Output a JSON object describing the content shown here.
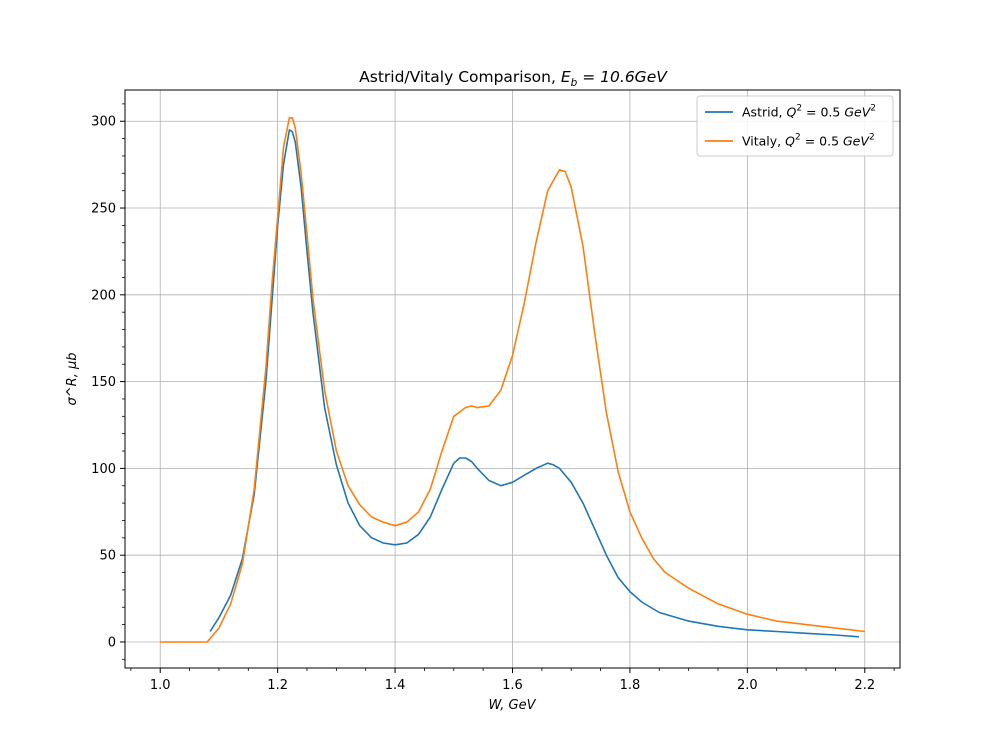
{
  "chart_data": {
    "type": "line",
    "title": "Astrid/Vitaly Comparison, E_b = 10.6GeV",
    "title_parts": {
      "prefix": "Astrid/Vitaly Comparison, ",
      "symbol": "E",
      "subscript": "b",
      "suffix": " = 10.6GeV"
    },
    "xlabel": "W, GeV",
    "ylabel": "σ^R, μb",
    "xlim": [
      0.94,
      2.26
    ],
    "ylim": [
      -15,
      318
    ],
    "x_ticks": [
      1.0,
      1.2,
      1.4,
      1.6,
      1.8,
      2.0,
      2.2
    ],
    "x_tick_labels": [
      "1.0",
      "1.2",
      "1.4",
      "1.6",
      "1.8",
      "2.0",
      "2.2"
    ],
    "y_ticks": [
      0,
      50,
      100,
      150,
      200,
      250,
      300
    ],
    "y_tick_labels": [
      "0",
      "50",
      "100",
      "150",
      "200",
      "250",
      "300"
    ],
    "grid": true,
    "legend_position": "top-right",
    "series": [
      {
        "name": "Astrid, Q² = 0.5 GeV²",
        "color": "#1f77b4",
        "points": [
          [
            1.085,
            6
          ],
          [
            1.1,
            14
          ],
          [
            1.12,
            27
          ],
          [
            1.14,
            48
          ],
          [
            1.16,
            85
          ],
          [
            1.18,
            150
          ],
          [
            1.19,
            195
          ],
          [
            1.2,
            240
          ],
          [
            1.21,
            275
          ],
          [
            1.22,
            295
          ],
          [
            1.225,
            294
          ],
          [
            1.23,
            288
          ],
          [
            1.24,
            262
          ],
          [
            1.25,
            225
          ],
          [
            1.26,
            190
          ],
          [
            1.28,
            135
          ],
          [
            1.3,
            102
          ],
          [
            1.32,
            80
          ],
          [
            1.34,
            67
          ],
          [
            1.36,
            60
          ],
          [
            1.38,
            57
          ],
          [
            1.4,
            56
          ],
          [
            1.42,
            57
          ],
          [
            1.44,
            62
          ],
          [
            1.46,
            72
          ],
          [
            1.48,
            88
          ],
          [
            1.5,
            103
          ],
          [
            1.51,
            106
          ],
          [
            1.52,
            106
          ],
          [
            1.53,
            104
          ],
          [
            1.54,
            100
          ],
          [
            1.56,
            93
          ],
          [
            1.58,
            90
          ],
          [
            1.6,
            92
          ],
          [
            1.62,
            96
          ],
          [
            1.64,
            100
          ],
          [
            1.66,
            103
          ],
          [
            1.67,
            102
          ],
          [
            1.68,
            100
          ],
          [
            1.7,
            92
          ],
          [
            1.72,
            80
          ],
          [
            1.74,
            65
          ],
          [
            1.76,
            50
          ],
          [
            1.78,
            37
          ],
          [
            1.8,
            29
          ],
          [
            1.82,
            23
          ],
          [
            1.85,
            17
          ],
          [
            1.9,
            12
          ],
          [
            1.95,
            9
          ],
          [
            2.0,
            7
          ],
          [
            2.05,
            6
          ],
          [
            2.1,
            5
          ],
          [
            2.15,
            4
          ],
          [
            2.19,
            3
          ]
        ]
      },
      {
        "name": "Vitaly, Q² = 0.5 GeV²",
        "color": "#ff7f0e",
        "points": [
          [
            1.0,
            0
          ],
          [
            1.04,
            0
          ],
          [
            1.08,
            0
          ],
          [
            1.1,
            8
          ],
          [
            1.12,
            22
          ],
          [
            1.14,
            45
          ],
          [
            1.16,
            88
          ],
          [
            1.18,
            158
          ],
          [
            1.19,
            205
          ],
          [
            1.2,
            245
          ],
          [
            1.21,
            285
          ],
          [
            1.22,
            302
          ],
          [
            1.225,
            302
          ],
          [
            1.23,
            296
          ],
          [
            1.24,
            270
          ],
          [
            1.25,
            235
          ],
          [
            1.26,
            198
          ],
          [
            1.28,
            145
          ],
          [
            1.3,
            110
          ],
          [
            1.32,
            90
          ],
          [
            1.34,
            79
          ],
          [
            1.36,
            72
          ],
          [
            1.38,
            69
          ],
          [
            1.4,
            67
          ],
          [
            1.42,
            69
          ],
          [
            1.44,
            75
          ],
          [
            1.46,
            88
          ],
          [
            1.48,
            110
          ],
          [
            1.5,
            130
          ],
          [
            1.52,
            135
          ],
          [
            1.53,
            136
          ],
          [
            1.54,
            135
          ],
          [
            1.56,
            136
          ],
          [
            1.58,
            145
          ],
          [
            1.6,
            165
          ],
          [
            1.62,
            195
          ],
          [
            1.64,
            230
          ],
          [
            1.66,
            260
          ],
          [
            1.68,
            272
          ],
          [
            1.69,
            271
          ],
          [
            1.7,
            262
          ],
          [
            1.72,
            228
          ],
          [
            1.74,
            178
          ],
          [
            1.76,
            132
          ],
          [
            1.78,
            98
          ],
          [
            1.8,
            75
          ],
          [
            1.82,
            60
          ],
          [
            1.84,
            48
          ],
          [
            1.86,
            40
          ],
          [
            1.9,
            31
          ],
          [
            1.95,
            22
          ],
          [
            2.0,
            16
          ],
          [
            2.05,
            12
          ],
          [
            2.1,
            10
          ],
          [
            2.15,
            8
          ],
          [
            2.2,
            6
          ]
        ]
      }
    ],
    "legend": [
      {
        "prefix": "Astrid, ",
        "math": "Q",
        "sup": "2",
        "mid": " = 0.5 ",
        "unit": "GeV",
        "unit_sup": "2"
      },
      {
        "prefix": "Vitaly, ",
        "math": "Q",
        "sup": "2",
        "mid": " = 0.5 ",
        "unit": "GeV",
        "unit_sup": "2"
      }
    ]
  }
}
